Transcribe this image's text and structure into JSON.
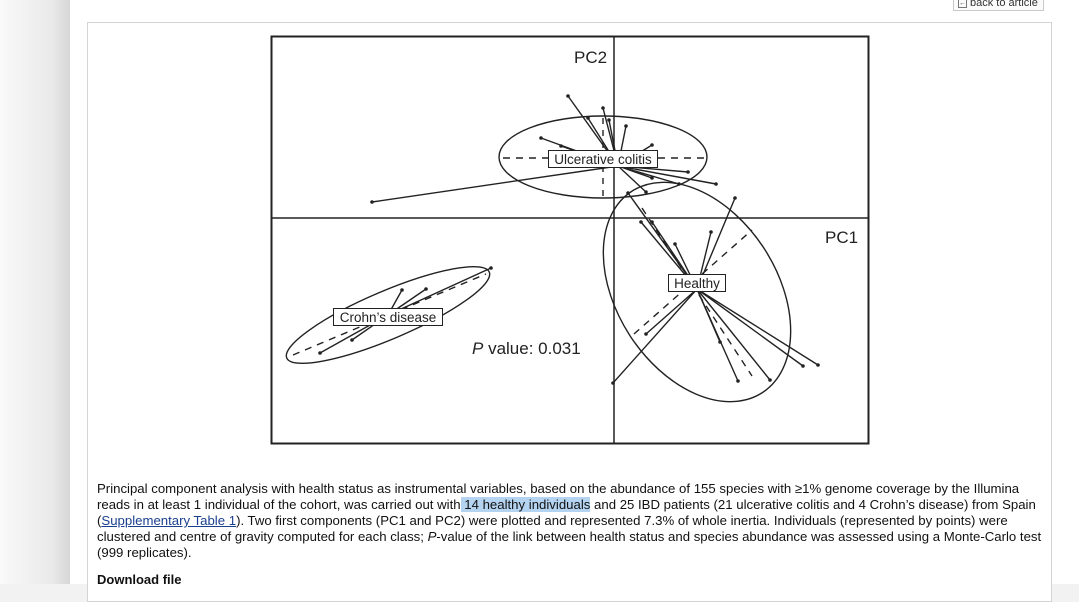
{
  "header": {
    "back_label": "back to article",
    "back_icon": "back-arrow-icon"
  },
  "figure": {
    "axis_labels": {
      "pc1": "PC1",
      "pc2": "PC2"
    },
    "groups": [
      {
        "name": "Ulcerative colitis"
      },
      {
        "name": "Healthy"
      },
      {
        "name": "Crohn’s disease"
      }
    ],
    "p_value": {
      "prefix": "P",
      "text": " value: 0.031"
    }
  },
  "caption": {
    "part1": "Principal component analysis with health status as instrumental variables, based on the abundance of 155 species with ≥1% genome coverage by the Illumina reads in at least 1 individual of the cohort, was carried out with",
    "highlight": " 14 healthy individuals",
    "part2": " and 25 IBD patients (21 ulcerative colitis and 4 Crohn’s disease) from Spain (",
    "link": "Supplementary Table 1",
    "part3": "). Two first components (PC1 and PC2) were plotted and represented 7.3% of whole inertia. Individuals (represented by points) were clustered and centre of gravity computed for each class; ",
    "italic": "P",
    "part4": "-value of the link between health status and species abundance was assessed using a Monte-Carlo test (999 replicates)."
  },
  "download_label": "Download file"
}
